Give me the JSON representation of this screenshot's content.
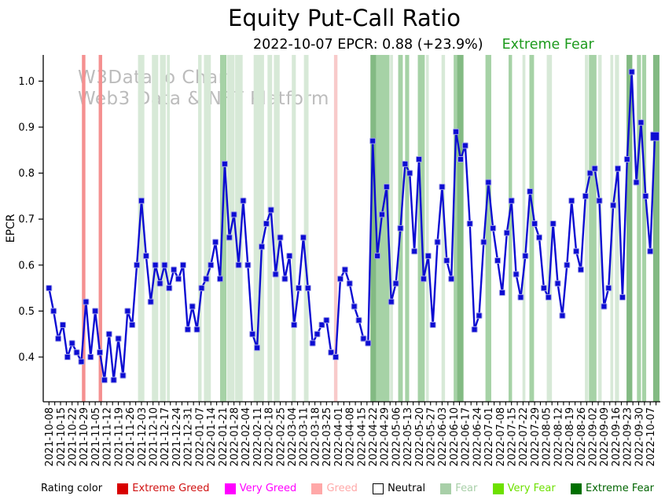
{
  "header": {
    "title": "Equity Put-Call Ratio",
    "subtitle": "2022-10-07 EPCR: 0.88 (+23.9%)",
    "status_label": "Extreme Fear",
    "status_color": "#1e9b1e"
  },
  "watermark": {
    "line1": "W3Data.io Chart",
    "line2": "Web3 Data & NFT Platform"
  },
  "chart_data": {
    "type": "line",
    "title": "Equity Put-Call Ratio",
    "ylabel": "EPCR",
    "marker": "square",
    "line_color": "#0d0dd2",
    "marker_edge_color": "#a0a0e8",
    "ylim": [
      0.3,
      1.06
    ],
    "yticks": [
      0.4,
      0.5,
      0.6,
      0.7,
      0.8,
      0.9,
      1.0
    ],
    "x_labels": [
      "2021-10-08",
      "2021-10-15",
      "2021-10-22",
      "2021-10-29",
      "2021-11-05",
      "2021-11-12",
      "2021-11-19",
      "2021-11-26",
      "2021-12-03",
      "2021-12-10",
      "2021-12-17",
      "2021-12-24",
      "2021-12-31",
      "2022-01-07",
      "2022-01-14",
      "2022-01-21",
      "2022-01-28",
      "2022-02-04",
      "2022-02-11",
      "2022-02-18",
      "2022-02-25",
      "2022-03-04",
      "2022-03-11",
      "2022-03-18",
      "2022-03-25",
      "2022-04-01",
      "2022-04-08",
      "2022-04-15",
      "2022-04-22",
      "2022-04-29",
      "2022-05-06",
      "2022-05-13",
      "2022-05-20",
      "2022-05-27",
      "2022-06-03",
      "2022-06-10",
      "2022-06-17",
      "2022-06-24",
      "2022-07-01",
      "2022-07-08",
      "2022-07-15",
      "2022-07-22",
      "2022-07-29",
      "2022-08-05",
      "2022-08-12",
      "2022-08-19",
      "2022-08-26",
      "2022-09-02",
      "2022-09-09",
      "2022-09-16",
      "2022-09-23",
      "2022-09-30",
      "2022-10-07"
    ],
    "x_step_weeks": 0.4,
    "values": [
      0.55,
      0.5,
      0.44,
      0.47,
      0.4,
      0.43,
      0.41,
      0.39,
      0.52,
      0.4,
      0.5,
      0.41,
      0.35,
      0.45,
      0.35,
      0.44,
      0.36,
      0.5,
      0.47,
      0.6,
      0.74,
      0.62,
      0.52,
      0.6,
      0.56,
      0.6,
      0.55,
      0.59,
      0.57,
      0.6,
      0.46,
      0.51,
      0.46,
      0.55,
      0.57,
      0.6,
      0.65,
      0.57,
      0.82,
      0.66,
      0.71,
      0.6,
      0.74,
      0.6,
      0.45,
      0.42,
      0.64,
      0.69,
      0.72,
      0.58,
      0.66,
      0.57,
      0.62,
      0.47,
      0.55,
      0.66,
      0.55,
      0.43,
      0.45,
      0.47,
      0.48,
      0.41,
      0.4,
      0.57,
      0.59,
      0.56,
      0.51,
      0.48,
      0.44,
      0.43,
      0.87,
      0.62,
      0.71,
      0.77,
      0.52,
      0.56,
      0.68,
      0.82,
      0.8,
      0.63,
      0.83,
      0.57,
      0.62,
      0.47,
      0.65,
      0.77,
      0.61,
      0.57,
      0.89,
      0.83,
      0.86,
      0.69,
      0.46,
      0.49,
      0.65,
      0.78,
      0.68,
      0.61,
      0.54,
      0.67,
      0.74,
      0.58,
      0.53,
      0.62,
      0.76,
      0.69,
      0.66,
      0.55,
      0.53,
      0.69,
      0.56,
      0.49,
      0.6,
      0.74,
      0.63,
      0.59,
      0.75,
      0.8,
      0.81,
      0.74,
      0.51,
      0.55,
      0.73,
      0.81,
      0.53,
      0.83,
      1.02,
      0.78,
      0.91,
      0.75,
      0.63,
      0.88
    ],
    "last_point": {
      "date": "2022-10-07",
      "value": 0.88,
      "change_pct": "+23.9%"
    },
    "band_colors": {
      "extreme_greed": "#f59090",
      "greed": "#f8caca",
      "fear": "#d7e9d7",
      "very_fear": "#a6d2a6",
      "extreme_fear": "#83ba83"
    },
    "bands": [
      [
        2.85,
        3.15,
        "extreme_greed"
      ],
      [
        4.3,
        4.6,
        "extreme_greed"
      ],
      [
        7.7,
        8.25,
        "fear"
      ],
      [
        8.9,
        9.45,
        "fear"
      ],
      [
        9.6,
        10.1,
        "fear"
      ],
      [
        10.2,
        10.45,
        "fear"
      ],
      [
        12.9,
        13.2,
        "fear"
      ],
      [
        13.4,
        14.0,
        "fear"
      ],
      [
        14.8,
        15.35,
        "very_fear"
      ],
      [
        15.4,
        16.05,
        "fear"
      ],
      [
        16.1,
        16.75,
        "fear"
      ],
      [
        17.7,
        18.6,
        "fear"
      ],
      [
        18.9,
        19.3,
        "fear"
      ],
      [
        19.45,
        19.95,
        "fear"
      ],
      [
        21.0,
        21.35,
        "fear"
      ],
      [
        22.05,
        22.45,
        "fear"
      ],
      [
        24.65,
        24.95,
        "greed"
      ],
      [
        27.8,
        28.3,
        "extreme_fear"
      ],
      [
        28.3,
        29.45,
        "very_fear"
      ],
      [
        29.5,
        29.75,
        "fear"
      ],
      [
        30.2,
        30.6,
        "very_fear"
      ],
      [
        30.8,
        31.15,
        "very_fear"
      ],
      [
        31.9,
        32.5,
        "very_fear"
      ],
      [
        32.6,
        32.85,
        "fear"
      ],
      [
        33.95,
        34.25,
        "fear"
      ],
      [
        35.0,
        35.3,
        "very_fear"
      ],
      [
        35.3,
        35.85,
        "extreme_fear"
      ],
      [
        37.75,
        38.25,
        "very_fear"
      ],
      [
        39.75,
        40.05,
        "very_fear"
      ],
      [
        40.95,
        41.2,
        "fear"
      ],
      [
        41.55,
        41.95,
        "very_fear"
      ],
      [
        43.05,
        43.5,
        "fear"
      ],
      [
        46.35,
        46.65,
        "fear"
      ],
      [
        46.7,
        47.35,
        "very_fear"
      ],
      [
        47.5,
        47.8,
        "fear"
      ],
      [
        48.55,
        48.8,
        "fear"
      ],
      [
        48.95,
        49.3,
        "fear"
      ],
      [
        49.95,
        50.45,
        "extreme_fear"
      ],
      [
        50.85,
        51.2,
        "very_fear"
      ],
      [
        51.3,
        51.65,
        "very_fear"
      ],
      [
        52.25,
        52.8,
        "extreme_fear"
      ]
    ]
  },
  "legend": {
    "title": "Rating color",
    "items": [
      {
        "label": "Extreme Greed",
        "color": "#d80000",
        "label_color": "#d01010",
        "border": false
      },
      {
        "label": "Very Greed",
        "color": "#ff00ff",
        "label_color": "#ff00ff",
        "border": false
      },
      {
        "label": "Greed",
        "color": "#ffa8a8",
        "label_color": "#ffa8a8",
        "border": false
      },
      {
        "label": "Neutral",
        "color": "#ffffff",
        "label_color": "#000000",
        "border": true
      },
      {
        "label": "Fear",
        "color": "#a8cfa8",
        "label_color": "#a8cfa8",
        "border": false
      },
      {
        "label": "Very Fear",
        "color": "#6de000",
        "label_color": "#6de000",
        "border": false
      },
      {
        "label": "Extreme Fear",
        "color": "#007000",
        "label_color": "#006400",
        "border": false
      }
    ]
  }
}
